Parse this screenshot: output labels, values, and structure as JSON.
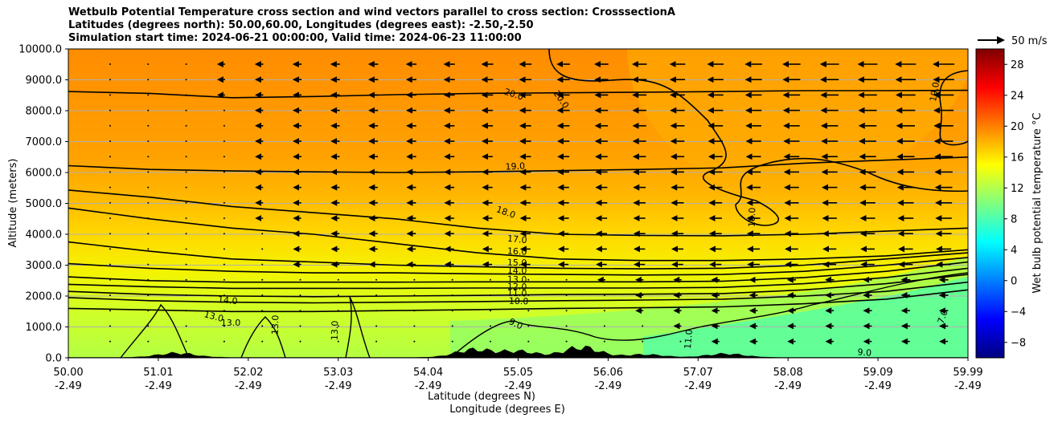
{
  "chart_data": {
    "type": "heatmap",
    "title_lines": [
      "Wetbulb Potential Temperature cross section and wind vectors parallel to cross section: CrosssectionA",
      "Latitudes (degrees north): 50.00,60.00, Longitudes (degrees east): -2.50,-2.50",
      "Simulation start time: 2024-06-21 00:00:00, Valid time: 2024-06-23 11:00:00"
    ],
    "ylabel": "Altitude (meters)",
    "xlabel_lat": "Latitude (degrees N)",
    "xlabel_lon": "Longitude (degrees E)",
    "ylim": [
      0,
      10000
    ],
    "y_ticks": [
      "0.0",
      "1000.0",
      "2000.0",
      "3000.0",
      "4000.0",
      "5000.0",
      "6000.0",
      "7000.0",
      "8000.0",
      "9000.0",
      "10000.0"
    ],
    "x_ticks_lat": [
      "50.00",
      "51.01",
      "52.02",
      "53.03",
      "54.04",
      "55.05",
      "56.06",
      "57.07",
      "58.08",
      "59.09",
      "59.99"
    ],
    "x_ticks_lon": [
      "-2.49",
      "-2.49",
      "-2.49",
      "-2.49",
      "-2.49",
      "-2.49",
      "-2.49",
      "-2.49",
      "-2.49",
      "-2.49",
      "-2.49"
    ],
    "colorbar": {
      "label": "Wet bulb potential temperature $^\\circ$C",
      "label_text": "Wet bulb potential temperature °C",
      "range": [
        -10,
        30
      ],
      "ticks": [
        "28",
        "24",
        "20",
        "16",
        "12",
        "8",
        "4",
        "0",
        "−4",
        "−8"
      ],
      "tick_values": [
        28,
        24,
        20,
        16,
        12,
        8,
        4,
        0,
        -4,
        -8
      ],
      "colormap": "jet"
    },
    "wind_key": {
      "label": "50 m/s"
    },
    "contour_labels": [
      "20.0",
      "20.0",
      "19.0",
      "19.0",
      "18.0",
      "18.0",
      "17.0",
      "16.0",
      "15.0",
      "14.0",
      "13.0",
      "12.0",
      "11.0",
      "10.0",
      "9.0",
      "9.0",
      "7.0",
      "14.0",
      "13.0",
      "13.0",
      "13.0",
      "13.0",
      "11.0"
    ],
    "levels": [
      {
        "value": 20,
        "z": [
          8620,
          8560,
          8420,
          8460,
          8520,
          8560,
          8580,
          8600,
          8620,
          8650,
          8650,
          8660
        ]
      },
      {
        "value": 19,
        "z": [
          6220,
          6100,
          6050,
          6020,
          6000,
          6020,
          6060,
          6100,
          6150,
          6300,
          6400,
          6500
        ]
      },
      {
        "value": 18,
        "z": [
          5430,
          5200,
          4900,
          4700,
          4500,
          4200,
          4000,
          3960,
          3950,
          4000,
          4100,
          4200
        ]
      },
      {
        "value": 17,
        "z": [
          4850,
          4500,
          4200,
          4000,
          3700,
          3400,
          3200,
          3150,
          3150,
          3200,
          3300,
          3500
        ]
      },
      {
        "value": 16,
        "z": [
          3750,
          3450,
          3200,
          3100,
          3000,
          2950,
          2900,
          2880,
          2900,
          3000,
          3200,
          3400
        ]
      },
      {
        "value": 15,
        "z": [
          3050,
          2900,
          2800,
          2750,
          2750,
          2720,
          2700,
          2680,
          2700,
          2800,
          3000,
          3250
        ]
      },
      {
        "value": 14,
        "z": [
          2620,
          2500,
          2450,
          2450,
          2450,
          2460,
          2460,
          2460,
          2480,
          2600,
          2800,
          3100
        ]
      },
      {
        "value": 13,
        "z": [
          2380,
          2300,
          2250,
          2250,
          2250,
          2260,
          2260,
          2260,
          2280,
          2400,
          2600,
          2900
        ]
      },
      {
        "value": 12,
        "z": [
          2150,
          2050,
          2000,
          1980,
          2000,
          2020,
          2050,
          2060,
          2080,
          2200,
          2400,
          2700
        ]
      },
      {
        "value": 11,
        "z": [
          1950,
          1850,
          1800,
          1780,
          1800,
          1820,
          1850,
          1870,
          1900,
          2000,
          2150,
          2450
        ]
      },
      {
        "value": 10,
        "z": [
          1600,
          1550,
          1500,
          1500,
          1530,
          1560,
          1600,
          1620,
          1650,
          1750,
          1900,
          2200
        ]
      }
    ],
    "terrain_peaks": [
      {
        "lat": 51.2,
        "z": 180
      },
      {
        "lat": 54.5,
        "z": 320
      },
      {
        "lat": 55.0,
        "z": 250
      },
      {
        "lat": 55.7,
        "z": 420
      },
      {
        "lat": 56.4,
        "z": 120
      },
      {
        "lat": 57.3,
        "z": 150
      }
    ]
  }
}
